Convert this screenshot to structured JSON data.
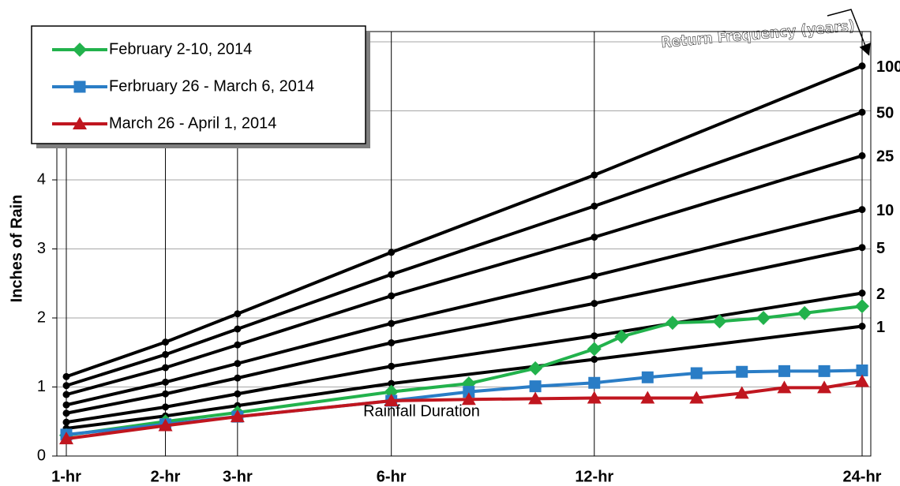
{
  "chart_data": {
    "type": "line",
    "y_label": "Inches of Rain",
    "ylim": [
      0,
      6
    ],
    "yticks": [
      0,
      1,
      2,
      3,
      4,
      5,
      6
    ],
    "xlim": [
      1,
      24
    ],
    "xscale": "power",
    "xexponent": 0.4,
    "xticks": [
      {
        "value": 1,
        "label": "1-hr"
      },
      {
        "value": 2,
        "label": "2-hr"
      },
      {
        "value": 3,
        "label": "3-hr"
      },
      {
        "value": 6,
        "label": "6-hr"
      },
      {
        "value": 12,
        "label": "12-hr"
      },
      {
        "value": 24,
        "label": "24-hr"
      }
    ],
    "grid": true,
    "legend": "upper left",
    "annotations": [
      "Return Frequency (years)",
      "Rainfall Duration"
    ],
    "series": [
      {
        "name": "February 2-10, 2014",
        "color": "#22b24c",
        "marker": "diamond",
        "x": [
          1,
          2,
          3,
          6,
          8,
          10,
          12,
          13,
          15,
          17,
          19,
          21,
          24
        ],
        "values": [
          0.3,
          0.5,
          0.63,
          0.93,
          1.05,
          1.27,
          1.55,
          1.73,
          1.93,
          1.95,
          2.0,
          2.07,
          2.17
        ]
      },
      {
        "name": "Ferbruary 26 - March 6, 2014",
        "color": "#2a7dc6",
        "marker": "square",
        "x": [
          1,
          2,
          3,
          6,
          8,
          10,
          12,
          14,
          16,
          18,
          20,
          22,
          24
        ],
        "values": [
          0.31,
          0.46,
          0.57,
          0.8,
          0.93,
          1.01,
          1.06,
          1.14,
          1.2,
          1.22,
          1.23,
          1.23,
          1.24
        ]
      },
      {
        "name": "March 26 - April 1, 2014",
        "color": "#c0161f",
        "marker": "triangle",
        "x": [
          1,
          2,
          3,
          6,
          8,
          10,
          12,
          14,
          16,
          18,
          20,
          22,
          24
        ],
        "values": [
          0.25,
          0.44,
          0.57,
          0.8,
          0.82,
          0.83,
          0.84,
          0.84,
          0.84,
          0.91,
          0.99,
          0.99,
          1.08
        ]
      }
    ],
    "frequency_curves": {
      "color": "#000000",
      "x": [
        1,
        2,
        3,
        6,
        12,
        24
      ],
      "curves": [
        {
          "name": "100",
          "values": [
            1.15,
            1.65,
            2.06,
            2.95,
            4.07,
            5.65
          ]
        },
        {
          "name": "50",
          "values": [
            1.02,
            1.47,
            1.84,
            2.63,
            3.62,
            4.98
          ]
        },
        {
          "name": "25",
          "values": [
            0.89,
            1.28,
            1.61,
            2.32,
            3.17,
            4.35
          ]
        },
        {
          "name": "10",
          "values": [
            0.74,
            1.07,
            1.34,
            1.92,
            2.61,
            3.57
          ]
        },
        {
          "name": "5",
          "values": [
            0.62,
            0.9,
            1.13,
            1.64,
            2.21,
            3.02
          ]
        },
        {
          "name": "2",
          "values": [
            0.49,
            0.71,
            0.9,
            1.3,
            1.74,
            2.36
          ]
        },
        {
          "name": "1",
          "values": [
            0.4,
            0.58,
            0.73,
            1.05,
            1.4,
            1.88
          ]
        }
      ]
    }
  }
}
